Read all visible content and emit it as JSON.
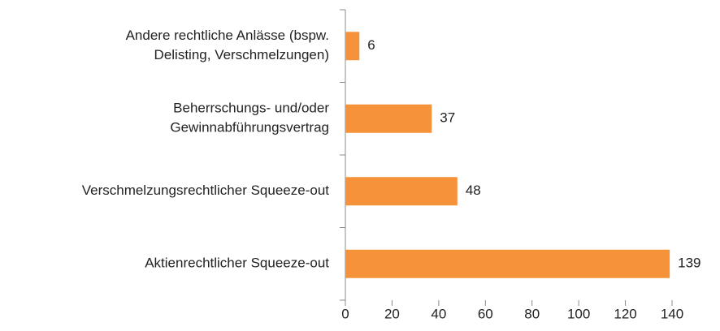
{
  "chart_data": {
    "type": "hbar",
    "categories": [
      [
        "Andere rechtliche Anlässe (bspw.",
        "Delisting, Verschmelzungen)"
      ],
      [
        "Beherrschungs- und/oder",
        "Gewinnabführungsvertrag"
      ],
      [
        "Verschmelzungsrechtlicher Squeeze-out"
      ],
      [
        "Aktienrechtlicher Squeeze-out"
      ]
    ],
    "values": [
      6,
      37,
      48,
      139
    ],
    "color": "#f5923a",
    "xlim": [
      0,
      140
    ],
    "xticks": [
      0,
      20,
      40,
      60,
      80,
      100,
      120,
      140
    ]
  }
}
